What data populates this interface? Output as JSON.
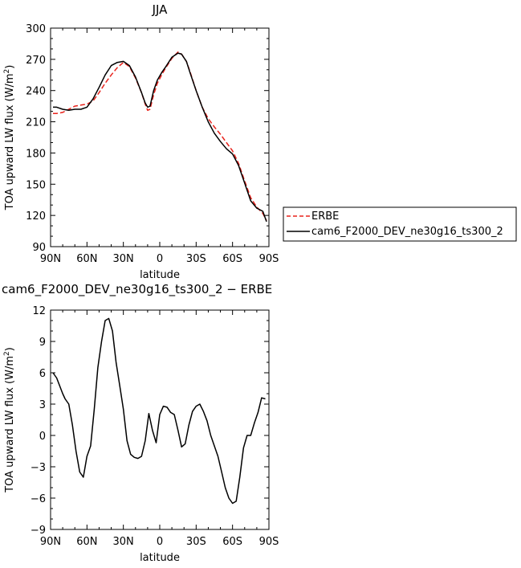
{
  "chart_data": [
    {
      "type": "line",
      "title": "JJA",
      "xlabel": "latitude",
      "ylabel": "TOA upward LW flux (W/m²)",
      "xlim": [
        -90,
        90
      ],
      "ylim": [
        90,
        300
      ],
      "x_ticks": [
        -90,
        -60,
        -30,
        0,
        30,
        60,
        90
      ],
      "x_tick_labels": [
        "90N",
        "60N",
        "30N",
        "0",
        "30S",
        "60S",
        "90S"
      ],
      "y_ticks": [
        90,
        120,
        150,
        180,
        210,
        240,
        270,
        300
      ],
      "y_tick_labels": [
        "90",
        "120",
        "150",
        "180",
        "210",
        "240",
        "270",
        "300"
      ],
      "legend": "right",
      "series": [
        {
          "name": "ERBE",
          "color": "#e8231c",
          "style": "dashed",
          "x": [
            -88,
            -85,
            -80,
            -75,
            -70,
            -65,
            -60,
            -55,
            -50,
            -45,
            -40,
            -35,
            -30,
            -25,
            -20,
            -15,
            -12,
            -10,
            -8,
            -5,
            -2,
            2,
            5,
            10,
            15,
            18,
            22,
            25,
            30,
            35,
            40,
            45,
            50,
            55,
            60,
            65,
            70,
            75,
            80,
            85,
            88
          ],
          "y": [
            218,
            218,
            219,
            222,
            225,
            226,
            227,
            230,
            238,
            247,
            255,
            262,
            267,
            263,
            252,
            238,
            227,
            221,
            222,
            236,
            247,
            256,
            262,
            271,
            277,
            275,
            268,
            258,
            240,
            224,
            213,
            205,
            198,
            190,
            182,
            170,
            153,
            137,
            128,
            122,
            115
          ]
        },
        {
          "name": "cam6_F2000_DEV_ne30g16_ts300_2",
          "color": "#000000",
          "style": "solid",
          "x": [
            -88,
            -85,
            -80,
            -75,
            -70,
            -65,
            -60,
            -55,
            -50,
            -45,
            -40,
            -35,
            -30,
            -25,
            -20,
            -15,
            -12,
            -10,
            -8,
            -5,
            -2,
            2,
            5,
            10,
            15,
            18,
            22,
            25,
            30,
            35,
            40,
            45,
            50,
            55,
            60,
            65,
            70,
            75,
            80,
            85,
            88
          ],
          "y": [
            224,
            224,
            222,
            221,
            222,
            222,
            224,
            232,
            243,
            255,
            264,
            267,
            268,
            264,
            253,
            238,
            228,
            224,
            225,
            240,
            250,
            258,
            263,
            272,
            276,
            275,
            268,
            257,
            240,
            224,
            210,
            199,
            191,
            184,
            179,
            168,
            151,
            134,
            127,
            124,
            114
          ]
        }
      ]
    },
    {
      "type": "line",
      "title": "cam6_F2000_DEV_ne30g16_ts300_2 − ERBE",
      "xlabel": "latitude",
      "ylabel": "TOA upward LW flux (W/m²)",
      "xlim": [
        -90,
        90
      ],
      "ylim": [
        -9,
        12
      ],
      "x_ticks": [
        -90,
        -60,
        -30,
        0,
        30,
        60,
        90
      ],
      "x_tick_labels": [
        "90N",
        "60N",
        "30N",
        "0",
        "30S",
        "60S",
        "90S"
      ],
      "y_ticks": [
        -9,
        -6,
        -3,
        0,
        3,
        6,
        9,
        12
      ],
      "y_tick_labels": [
        "−9",
        "−6",
        "−3",
        "0",
        "3",
        "6",
        "9",
        "12"
      ],
      "series": [
        {
          "name": "",
          "color": "#000000",
          "style": "solid",
          "x": [
            -88,
            -85,
            -80,
            -78,
            -75,
            -72,
            -69,
            -66,
            -63,
            -60,
            -57,
            -54,
            -51,
            -48,
            -45,
            -42,
            -39,
            -36,
            -33,
            -30,
            -27,
            -24,
            -21,
            -18,
            -15,
            -12,
            -9,
            -6,
            -3,
            0,
            3,
            6,
            9,
            12,
            15,
            18,
            21,
            24,
            27,
            30,
            33,
            36,
            39,
            42,
            45,
            48,
            51,
            54,
            57,
            60,
            63,
            66,
            69,
            72,
            75,
            78,
            81,
            84,
            87
          ],
          "y": [
            6.0,
            5.5,
            4.0,
            3.5,
            3.0,
            1.0,
            -1.5,
            -3.5,
            -4.0,
            -2.0,
            -1.0,
            2.5,
            6.5,
            9.0,
            11.0,
            11.2,
            10.0,
            7.0,
            4.8,
            2.5,
            -0.5,
            -1.8,
            -2.1,
            -2.2,
            -2.0,
            -0.5,
            2.1,
            0.5,
            -0.7,
            2.0,
            2.8,
            2.7,
            2.2,
            2.0,
            0.5,
            -1.1,
            -0.8,
            1.0,
            2.3,
            2.8,
            3.0,
            2.3,
            1.4,
            0.0,
            -1.0,
            -2.0,
            -3.5,
            -5.0,
            -6.0,
            -6.5,
            -6.3,
            -4.0,
            -1.2,
            0.0,
            0.0,
            1.2,
            2.2,
            3.6,
            3.5
          ]
        }
      ]
    }
  ]
}
